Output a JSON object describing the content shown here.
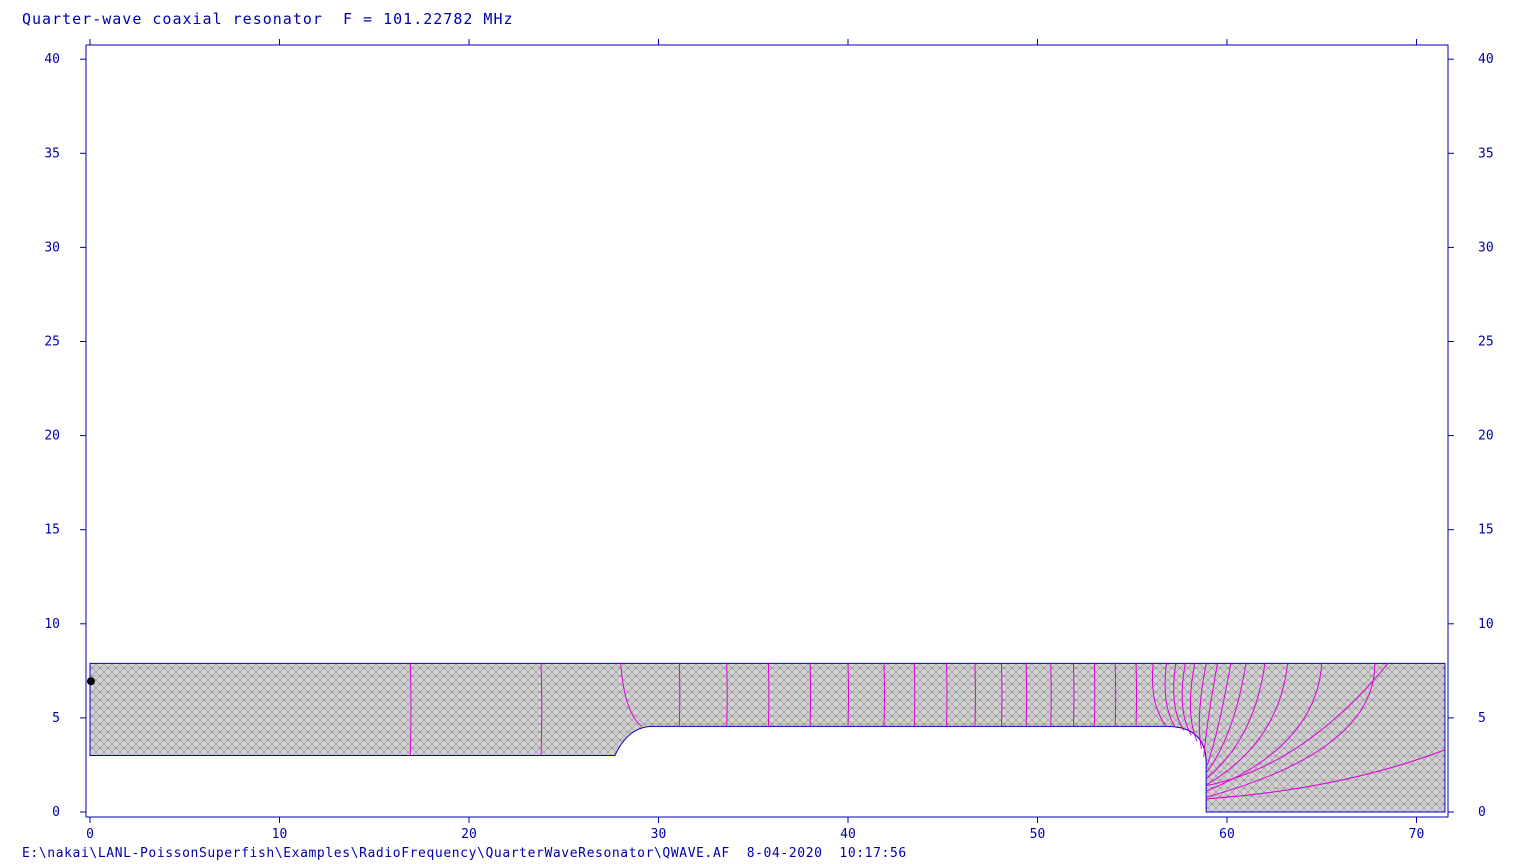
{
  "title": "Quarter-wave coaxial resonator  F = 101.22782 MHz",
  "footer": {
    "path": "E:\\nakai\\LANL-PoissonSuperfish\\Examples\\RadioFrequency\\QuarterWaveResonator\\QWAVE.AF",
    "date": "8-04-2020",
    "time": "10:17:56"
  },
  "chart_data": {
    "type": "line",
    "xlim": [
      0,
      71.7
    ],
    "ylim": [
      0,
      40.7
    ],
    "x_ticks": [
      0,
      10,
      20,
      30,
      40,
      50,
      60,
      70
    ],
    "y_ticks": [
      0,
      5,
      10,
      15,
      20,
      25,
      30,
      35,
      40
    ],
    "grid": false,
    "colors": {
      "axis": "#0000aa",
      "boundary": "#0000cc",
      "field_lines": "#dd00dd",
      "mesh_fill": "#d4d4d4",
      "mesh_line": "#8c8c8c",
      "marker": "#000000"
    },
    "geometry": {
      "outer_radius": 7.9,
      "inner_radius_left": 3.0,
      "inner_radius_right": 4.55,
      "step_start_x": 27.7,
      "step_end_x": 29.7,
      "stub_round_start_x": 56.8,
      "stub_end_x": 58.9,
      "end_wall_x": 71.5
    },
    "field_line_x": [
      16.9,
      23.8,
      31.1,
      33.6,
      35.8,
      38.0,
      40.0,
      41.9,
      43.5,
      45.2,
      46.7,
      48.1,
      49.4,
      50.7,
      51.9,
      53.0,
      54.1,
      55.2
    ],
    "marker_point": [
      0.05,
      6.95
    ]
  }
}
